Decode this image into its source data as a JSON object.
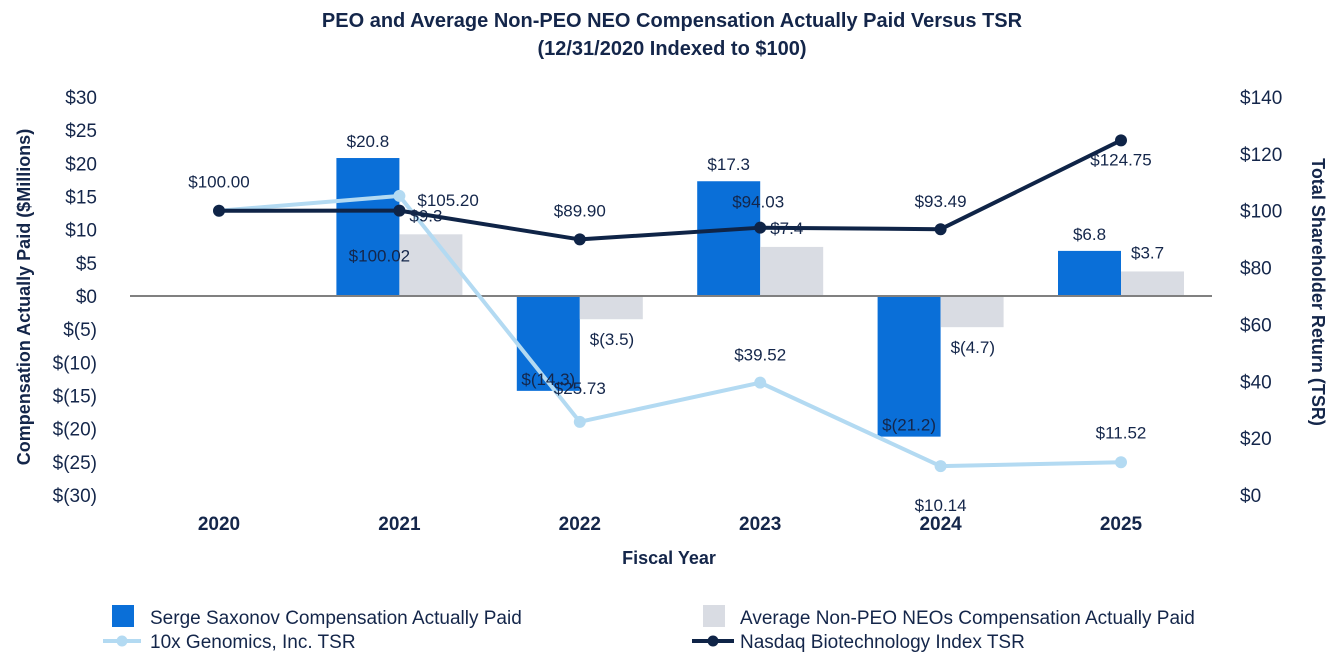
{
  "chart_data": {
    "type": "bar",
    "title": "PEO and Average Non-PEO NEO Compensation Actually Paid Versus TSR",
    "subtitle": "(12/31/2020 Indexed to $100)",
    "xlabel": "Fiscal Year",
    "ylabel": "Compensation Actually Paid ($Millions)",
    "y2label": "Total Shareholder Return (TSR)",
    "categories": [
      "2020",
      "2021",
      "2022",
      "2023",
      "2024",
      "2025"
    ],
    "ylim": [
      -30,
      30
    ],
    "y2lim": [
      0,
      140
    ],
    "yticks": [
      30,
      25,
      20,
      15,
      10,
      5,
      0,
      -5,
      -10,
      -15,
      -20,
      -25,
      -30
    ],
    "ytick_labels": [
      "$30",
      "$25",
      "$20",
      "$15",
      "$10",
      "$5",
      "$0",
      "$(5)",
      "$(10)",
      "$(15)",
      "$(20)",
      "$(25)",
      "$(30)"
    ],
    "y2ticks": [
      140,
      120,
      100,
      80,
      60,
      40,
      20,
      0
    ],
    "y2tick_labels": [
      "$140",
      "$120",
      "$100",
      "$80",
      "$60",
      "$40",
      "$20",
      "$0"
    ],
    "grid": false,
    "legend_position": "bottom",
    "series": [
      {
        "name": "Serge Saxonov Compensation Actually Paid",
        "kind": "bar",
        "axis": "left",
        "color": "#0a6fd8",
        "values": [
          null,
          20.8,
          -14.3,
          17.3,
          -21.2,
          6.8
        ],
        "labels": [
          "",
          "$20.8",
          "$(14.3)",
          "$17.3",
          "$(21.2)",
          "$6.8"
        ]
      },
      {
        "name": "Average  Non-PEO NEOs Compensation Actually Paid",
        "kind": "bar",
        "axis": "left",
        "color": "#d9dce3",
        "values": [
          null,
          9.3,
          -3.5,
          7.4,
          -4.7,
          3.7
        ],
        "labels": [
          "",
          "$9.3",
          "$(3.5)",
          "$7.4",
          "$(4.7)",
          "$3.7"
        ]
      },
      {
        "name": "10x Genomics, Inc. TSR",
        "kind": "line",
        "axis": "right",
        "color": "#b3daf2",
        "values": [
          100.0,
          105.2,
          25.73,
          39.52,
          10.14,
          11.52
        ],
        "labels": [
          "$100.00",
          "$105.20",
          "$25.73",
          "$39.52",
          "$10.14",
          "$11.52"
        ]
      },
      {
        "name": "Nasdaq Biotechnology Index TSR",
        "kind": "line",
        "axis": "right",
        "color": "#0f2447",
        "values": [
          100.0,
          100.02,
          89.9,
          94.03,
          93.49,
          124.75
        ],
        "labels": [
          "",
          "$100.02",
          "$89.90",
          "$94.03",
          "$93.49",
          "$124.75"
        ]
      }
    ]
  }
}
